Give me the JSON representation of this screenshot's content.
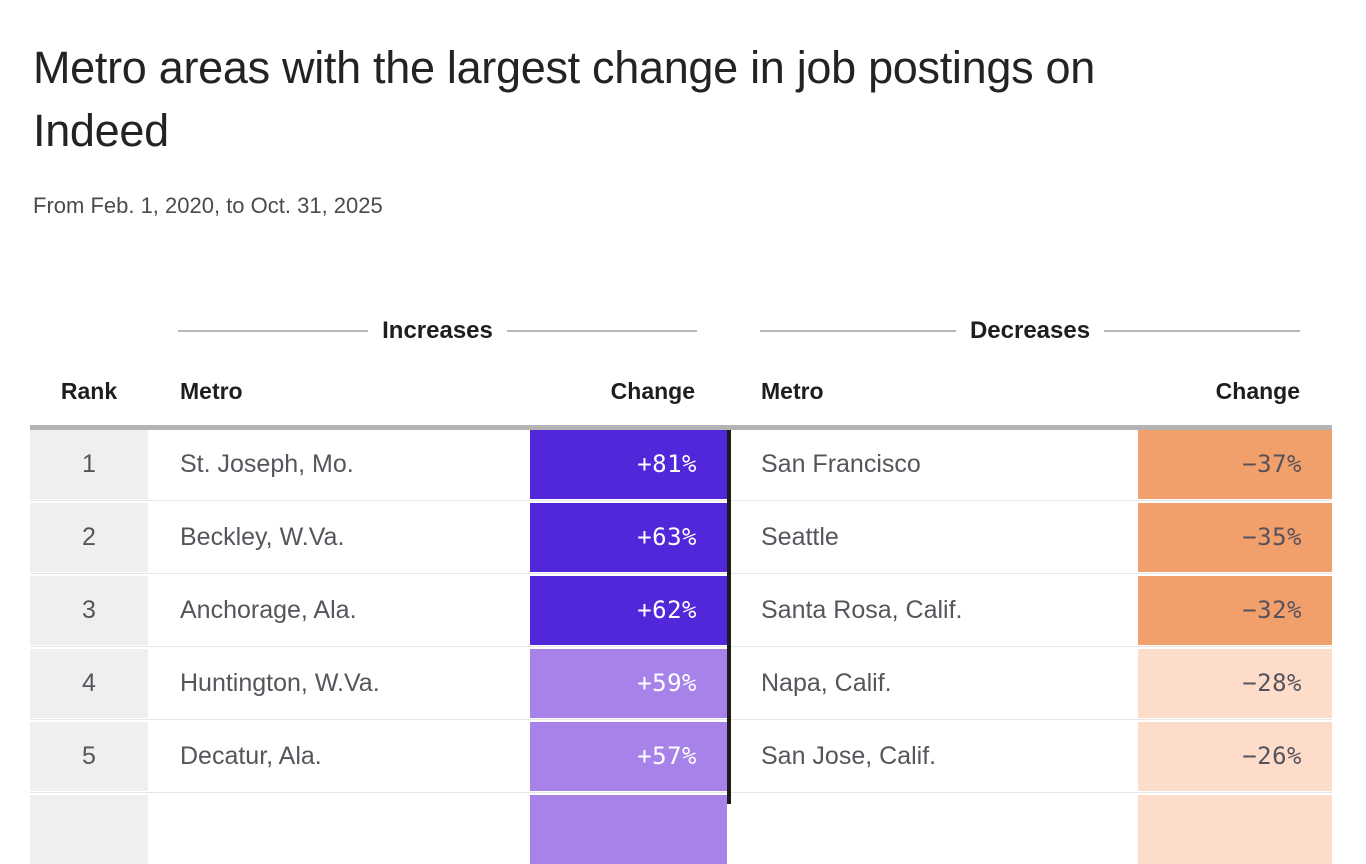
{
  "header": {
    "title_line1": "Metro areas with the largest change in job postings on",
    "title_line2": "Indeed",
    "subtitle": "From Feb. 1, 2020, to Oct. 31, 2025"
  },
  "table": {
    "increases_label": "Increases",
    "decreases_label": "Decreases",
    "columns": {
      "rank": "Rank",
      "metro_inc": "Metro",
      "change_inc": "Change",
      "metro_dec": "Metro",
      "change_dec": "Change"
    },
    "rows": [
      {
        "rank": "1",
        "inc_metro": "St. Joseph, Mo.",
        "inc_change": "+81%",
        "inc_bg": "#5226d9",
        "inc_fg": "#ffffff",
        "dec_metro": "San Francisco",
        "dec_change": "−37%",
        "dec_bg": "#f2a06b",
        "dec_fg": "#56525b"
      },
      {
        "rank": "2",
        "inc_metro": "Beckley, W.Va.",
        "inc_change": "+63%",
        "inc_bg": "#5226d9",
        "inc_fg": "#ffffff",
        "dec_metro": "Seattle",
        "dec_change": "−35%",
        "dec_bg": "#f2a06b",
        "dec_fg": "#56525b"
      },
      {
        "rank": "3",
        "inc_metro": "Anchorage, Ala.",
        "inc_change": "+62%",
        "inc_bg": "#5226d9",
        "inc_fg": "#ffffff",
        "dec_metro": "Santa Rosa, Calif.",
        "dec_change": "−32%",
        "dec_bg": "#f2a06b",
        "dec_fg": "#56525b"
      },
      {
        "rank": "4",
        "inc_metro": "Huntington, W.Va.",
        "inc_change": "+59%",
        "inc_bg": "#a782e8",
        "inc_fg": "#ffffff",
        "dec_metro": "Napa, Calif.",
        "dec_change": "−28%",
        "dec_bg": "#fdddc9",
        "dec_fg": "#56525b"
      },
      {
        "rank": "5",
        "inc_metro": "Decatur, Ala.",
        "inc_change": "+57%",
        "inc_bg": "#a782e8",
        "inc_fg": "#ffffff",
        "dec_metro": "San Jose, Calif.",
        "dec_change": "−26%",
        "dec_bg": "#fdddc9",
        "dec_fg": "#56525b"
      },
      {
        "rank": "",
        "inc_metro": "",
        "inc_change": "",
        "inc_bg": "#a782e8",
        "inc_fg": "#ffffff",
        "dec_metro": "",
        "dec_change": "",
        "dec_bg": "#fdddc9",
        "dec_fg": "#56525b"
      }
    ]
  },
  "colors": {
    "deep_purple": "#5226d9",
    "light_purple": "#a782e8",
    "orange": "#f2a06b",
    "light_peach": "#fdddc9",
    "rank_bg": "#efefef",
    "header_rule": "#b3b3b3",
    "section_line": "#b7b7b7",
    "black_divider": "#1c1c1c",
    "heading_text": "#1e1e1e",
    "body_text": "#55565c"
  },
  "chart_data": {
    "type": "table",
    "title": "Metro areas with the largest change in job postings on Indeed",
    "subtitle": "From Feb. 1, 2020, to Oct. 31, 2025",
    "series": [
      {
        "name": "Increases",
        "rows": [
          {
            "rank": 1,
            "metro": "St. Joseph, Mo.",
            "change_pct": 81
          },
          {
            "rank": 2,
            "metro": "Beckley, W.Va.",
            "change_pct": 63
          },
          {
            "rank": 3,
            "metro": "Anchorage, Ala.",
            "change_pct": 62
          },
          {
            "rank": 4,
            "metro": "Huntington, W.Va.",
            "change_pct": 59
          },
          {
            "rank": 5,
            "metro": "Decatur, Ala.",
            "change_pct": 57
          }
        ]
      },
      {
        "name": "Decreases",
        "rows": [
          {
            "rank": 1,
            "metro": "San Francisco",
            "change_pct": -37
          },
          {
            "rank": 2,
            "metro": "Seattle",
            "change_pct": -35
          },
          {
            "rank": 3,
            "metro": "Santa Rosa, Calif.",
            "change_pct": -32
          },
          {
            "rank": 4,
            "metro": "Napa, Calif.",
            "change_pct": -28
          },
          {
            "rank": 5,
            "metro": "San Jose, Calif.",
            "change_pct": -26
          }
        ]
      }
    ],
    "layout": {
      "color_encoding": "cell background encodes magnitude of change",
      "legend": false,
      "grid": false
    }
  }
}
